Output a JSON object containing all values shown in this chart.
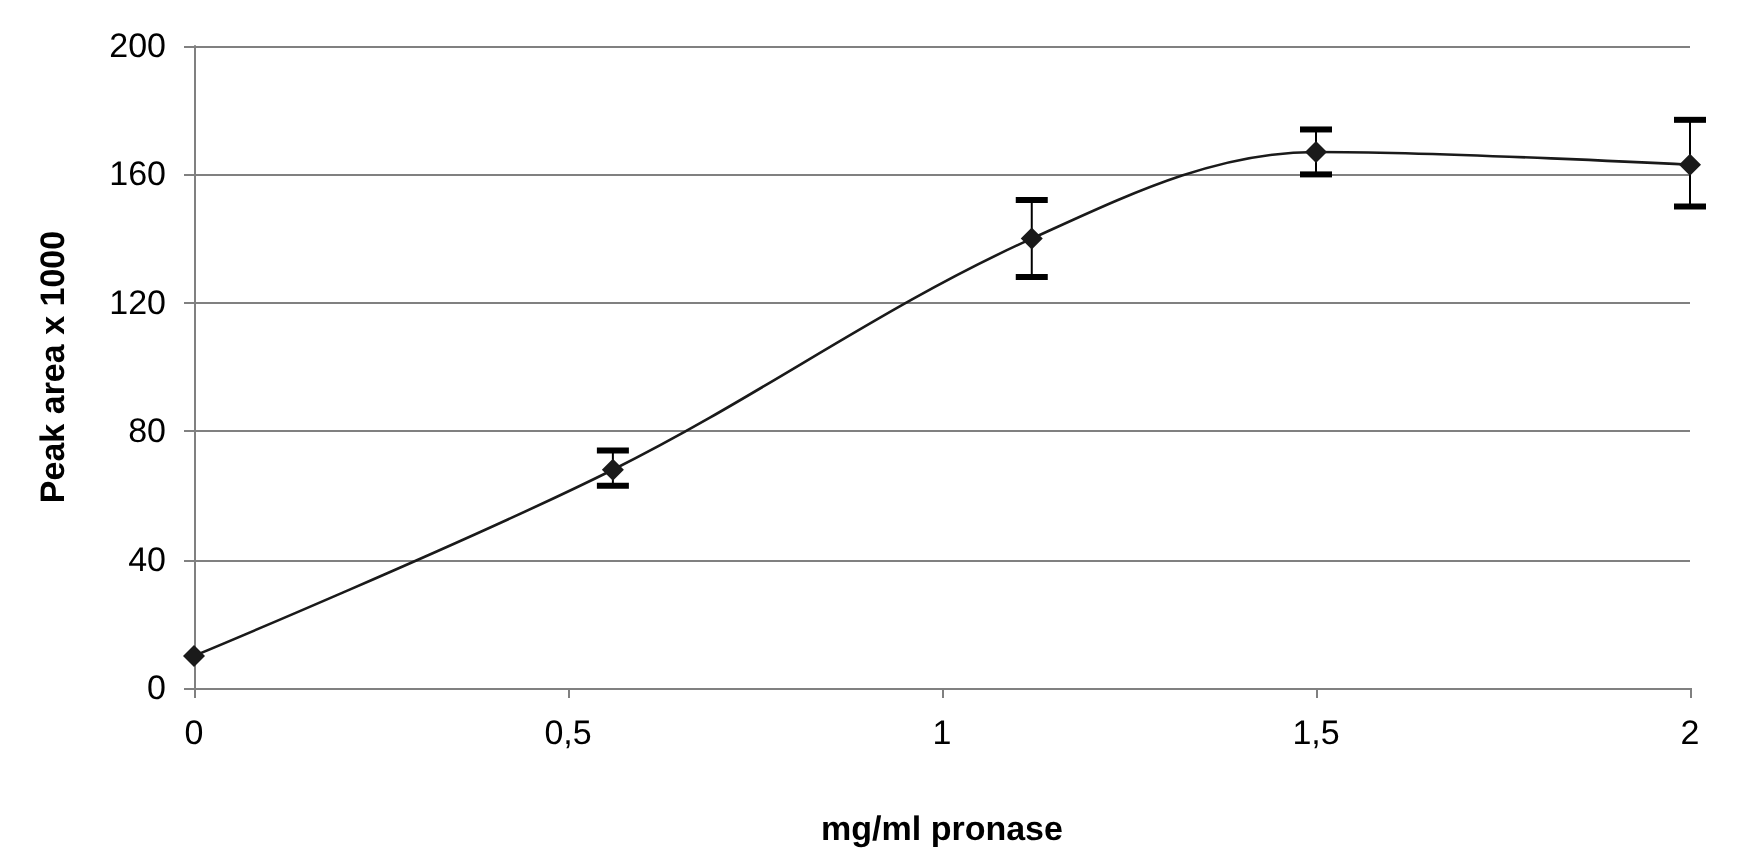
{
  "chart_data": {
    "type": "line",
    "xlabel": "mg/ml pronase",
    "ylabel": "Peak area x 1000",
    "x": [
      0,
      0.56,
      1.12,
      1.5,
      2
    ],
    "series": [
      {
        "color": "#1a1a1a",
        "values": [
          10,
          68,
          140,
          167,
          163
        ],
        "errors": [
          null,
          [
            63,
            74
          ],
          [
            128,
            152
          ],
          [
            160,
            174
          ],
          [
            150,
            177
          ]
        ]
      }
    ],
    "xlim": [
      0,
      2
    ],
    "xticks": [
      0,
      {
        "value": 0.5,
        "label": "0,5"
      },
      1,
      {
        "value": 1.5,
        "label": "1,5"
      },
      2
    ],
    "ylim": [
      0,
      200
    ],
    "yticks": [
      0,
      40,
      80,
      120,
      160,
      200
    ],
    "grid": "y",
    "marker": "diamond",
    "line_style": "solid"
  }
}
